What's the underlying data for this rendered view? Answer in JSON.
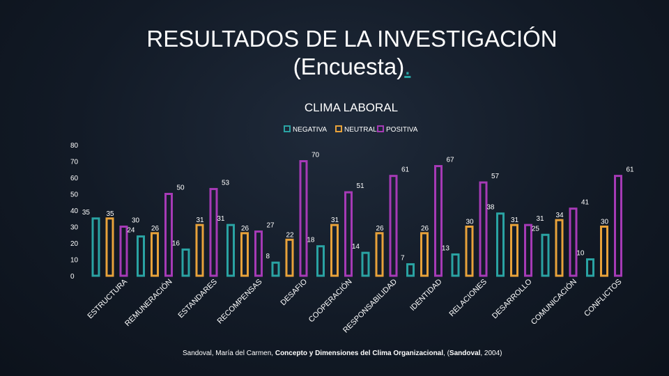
{
  "slide": {
    "title_line1": "RESULTADOS DE LA INVESTIGACIÓN",
    "title_line2": "(Encuesta)",
    "title_dot": ".",
    "source_prefix": "Sandoval, María del Carmen, ",
    "source_bold": "Concepto y Dimensiones del Clima Organizacional",
    "source_mid": ", (",
    "source_bold2": "Sandoval",
    "source_suffix": ", 2004)"
  },
  "chart_data": {
    "type": "bar",
    "title": "CLIMA LABORAL",
    "ylim": [
      0,
      80
    ],
    "yticks": [
      0,
      10,
      20,
      30,
      40,
      50,
      60,
      70,
      80
    ],
    "grid": false,
    "legend_position": "top",
    "categories": [
      "ESTRUCTURA",
      "REMUNERACIÓN",
      "ESTANDARES",
      "RECOMPENSAS",
      "DESAFIO",
      "COOPERACIÓN",
      "RESPONSABILIDAD",
      "IDENTIDAD",
      "RELACIONES",
      "DESARROLLO",
      "COMUNICACIÓN",
      "CONFLICTOS"
    ],
    "series": [
      {
        "name": "NEGATIVA",
        "color": "#2aa3a3",
        "values": [
          35,
          24,
          16,
          31,
          8,
          18,
          14,
          7,
          13,
          38,
          25,
          10
        ]
      },
      {
        "name": "NEUTRAL",
        "color": "#e8a23a",
        "values": [
          35,
          26,
          31,
          26,
          22,
          31,
          26,
          26,
          30,
          31,
          34,
          30
        ]
      },
      {
        "name": "POSITIVA",
        "color": "#a63ab6",
        "values": [
          30,
          50,
          53,
          27,
          70,
          51,
          61,
          67,
          57,
          31,
          41,
          61
        ]
      }
    ]
  }
}
